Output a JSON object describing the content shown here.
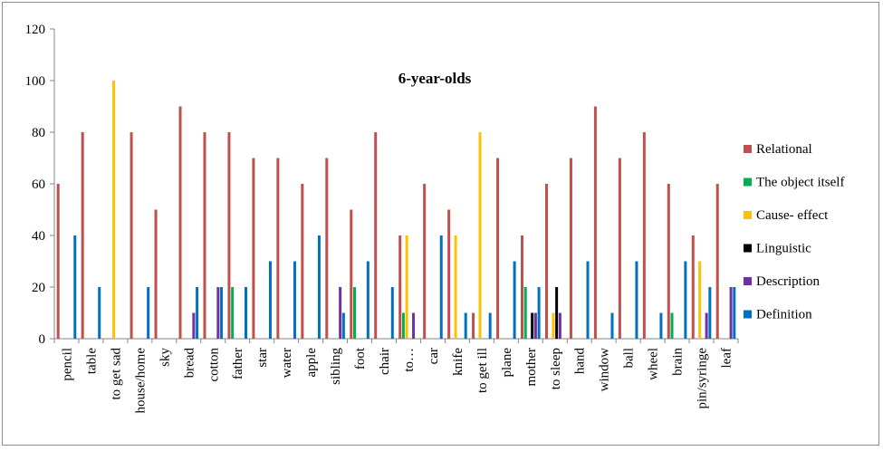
{
  "chart_data": {
    "type": "bar",
    "title": "6-year-olds",
    "xlabel": "",
    "ylabel": "",
    "ylim": [
      0,
      120
    ],
    "yticks": [
      "0",
      "20",
      "40",
      "60",
      "80",
      "100",
      "120"
    ],
    "grid": false,
    "legend_position": "right",
    "categories": [
      "pencil",
      "table",
      "to get sad",
      "house/home",
      "sky",
      "bread",
      "cotton",
      "father",
      "star",
      "water",
      "apple",
      "sibling",
      "foot",
      "chair",
      "to…",
      "car",
      "knife",
      "to get ill",
      "plane",
      "mother",
      "to sleep",
      "hand",
      "window",
      "ball",
      "wheel",
      "brain",
      "pin/syringe",
      "leaf"
    ],
    "series": [
      {
        "name": "Relational",
        "color": "#c0504d",
        "values": [
          60,
          80,
          0,
          80,
          50,
          90,
          80,
          80,
          70,
          70,
          60,
          70,
          50,
          80,
          40,
          60,
          50,
          10,
          70,
          40,
          60,
          70,
          90,
          70,
          80,
          60,
          40,
          60
        ]
      },
      {
        "name": "The object itself",
        "color": "#00b050",
        "values": [
          0,
          0,
          0,
          0,
          0,
          0,
          0,
          20,
          0,
          0,
          0,
          0,
          20,
          0,
          10,
          0,
          0,
          0,
          0,
          20,
          0,
          0,
          0,
          0,
          0,
          10,
          0,
          0
        ]
      },
      {
        "name": "Cause- effect",
        "color": "#ffc000",
        "values": [
          0,
          0,
          100,
          0,
          0,
          0,
          0,
          0,
          0,
          0,
          0,
          0,
          0,
          0,
          40,
          0,
          40,
          80,
          0,
          0,
          10,
          0,
          0,
          0,
          0,
          0,
          30,
          0
        ]
      },
      {
        "name": "Linguistic",
        "color": "#000000",
        "values": [
          0,
          0,
          0,
          0,
          0,
          0,
          0,
          0,
          0,
          0,
          0,
          0,
          0,
          0,
          0,
          0,
          0,
          0,
          0,
          10,
          20,
          0,
          0,
          0,
          0,
          0,
          0,
          0
        ]
      },
      {
        "name": "Description",
        "color": "#7030a0",
        "values": [
          0,
          0,
          0,
          0,
          0,
          10,
          20,
          0,
          0,
          0,
          0,
          20,
          0,
          0,
          10,
          0,
          0,
          0,
          0,
          10,
          10,
          0,
          0,
          0,
          0,
          0,
          10,
          20
        ]
      },
      {
        "name": "Definition",
        "color": "#0070c0",
        "values": [
          40,
          20,
          0,
          20,
          0,
          20,
          20,
          20,
          30,
          30,
          40,
          10,
          30,
          20,
          0,
          40,
          10,
          10,
          30,
          20,
          0,
          30,
          10,
          30,
          10,
          30,
          20,
          20
        ]
      }
    ]
  }
}
